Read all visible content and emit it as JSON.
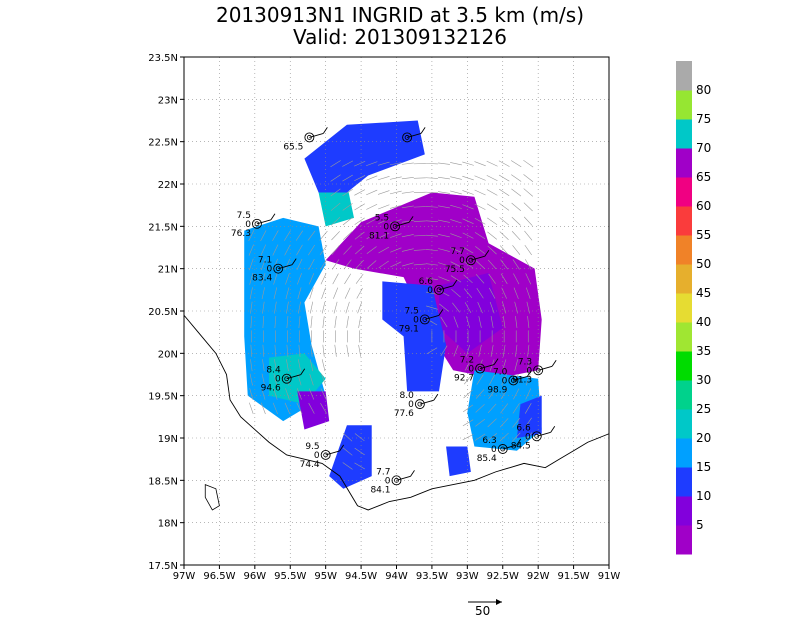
{
  "title": {
    "line1": "20130913N1 INGRID at 3.5 km (m/s)",
    "line2": "Valid: 201309132126"
  },
  "map": {
    "lon_range": [
      -97,
      -91
    ],
    "lat_range": [
      17.5,
      23.5
    ],
    "x_ticks": [
      "97W",
      "96.5W",
      "96W",
      "95.5W",
      "95W",
      "94.5W",
      "94W",
      "93.5W",
      "93W",
      "92.5W",
      "92W",
      "91.5W",
      "91W"
    ],
    "y_ticks": [
      "17.5N",
      "18N",
      "18.5N",
      "19N",
      "19.5N",
      "20N",
      "20.5N",
      "21N",
      "21.5N",
      "22N",
      "22.5N",
      "23N",
      "23.5N"
    ],
    "grid": true
  },
  "colorbar": {
    "labels": [
      "5",
      "10",
      "15",
      "20",
      "25",
      "30",
      "35",
      "40",
      "45",
      "50",
      "55",
      "60",
      "65",
      "70",
      "75",
      "80"
    ],
    "colors": [
      "#a000c8",
      "#8200dc",
      "#1e3cff",
      "#00a0ff",
      "#00c8c8",
      "#00d28c",
      "#00dc00",
      "#a0e632",
      "#e6dc32",
      "#e6af2d",
      "#f08228",
      "#fa3c3c",
      "#f00082",
      "#a000c8",
      "#00c8c8",
      "#96e632",
      "#aaaaaa"
    ]
  },
  "reference_vector": {
    "label": "50"
  },
  "stations": [
    {
      "lon": -95.97,
      "lat": 21.53,
      "top": "7.5",
      "mid": "0",
      "bottom": "76.3"
    },
    {
      "lon": -95.23,
      "lat": 22.55,
      "top": "",
      "mid": "",
      "bottom": "65.5"
    },
    {
      "lon": -93.85,
      "lat": 22.55,
      "top": "",
      "mid": "",
      "bottom": ""
    },
    {
      "lon": -94.02,
      "lat": 21.5,
      "top": "5.5",
      "mid": "0",
      "bottom": "81.1"
    },
    {
      "lon": -95.67,
      "lat": 21.0,
      "top": "7.1",
      "mid": "0",
      "bottom": "83.4"
    },
    {
      "lon": -92.95,
      "lat": 21.1,
      "top": "7.7",
      "mid": "0",
      "bottom": "75.5"
    },
    {
      "lon": -93.4,
      "lat": 20.75,
      "top": "6.6",
      "mid": "0",
      "bottom": ""
    },
    {
      "lon": -93.6,
      "lat": 20.4,
      "top": "7.5",
      "mid": "0",
      "bottom": "79.1"
    },
    {
      "lon": -95.55,
      "lat": 19.7,
      "top": "8.4",
      "mid": "0",
      "bottom": "94.6"
    },
    {
      "lon": -92.82,
      "lat": 19.82,
      "top": "7.2",
      "mid": "0",
      "bottom": "92.7"
    },
    {
      "lon": -92.35,
      "lat": 19.68,
      "top": "7.0",
      "mid": "0",
      "bottom": "98.9"
    },
    {
      "lon": -92.0,
      "lat": 19.8,
      "top": "7.3",
      "mid": "0",
      "bottom": "91.3"
    },
    {
      "lon": -93.67,
      "lat": 19.4,
      "top": "8.0",
      "mid": "0",
      "bottom": "77.6"
    },
    {
      "lon": -92.5,
      "lat": 18.87,
      "top": "6.3",
      "mid": "0",
      "bottom": "85.4"
    },
    {
      "lon": -92.02,
      "lat": 19.02,
      "top": "6.6",
      "mid": "0",
      "bottom": "84.5"
    },
    {
      "lon": -95.0,
      "lat": 18.8,
      "top": "9.5",
      "mid": "0",
      "bottom": "74.4"
    },
    {
      "lon": -94.0,
      "lat": 18.5,
      "top": "7.7",
      "mid": "0",
      "bottom": "84.1"
    }
  ]
}
